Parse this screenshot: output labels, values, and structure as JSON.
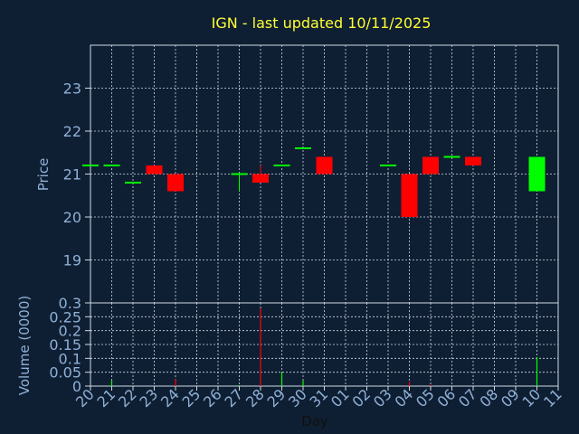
{
  "chart_data": [
    {
      "type": "candlestick",
      "title": "IGN - last updated 10/11/2025",
      "ylabel": "Price",
      "ylim": [
        18.0,
        24.0
      ],
      "yticks": [
        "19",
        "20",
        "21",
        "22",
        "23"
      ],
      "grid": true,
      "categories": [
        "20",
        "21",
        "22",
        "23",
        "24",
        "27",
        "28",
        "29",
        "30",
        "31",
        "03",
        "04",
        "05",
        "06",
        "07",
        "10"
      ],
      "x_tick_labels": [
        "20",
        "21",
        "22",
        "23",
        "24",
        "25",
        "26",
        "27",
        "28",
        "29",
        "30",
        "31",
        "01",
        "02",
        "03",
        "04",
        "05",
        "06",
        "07",
        "08",
        "09",
        "10",
        "11"
      ],
      "candles": [
        {
          "day": "20",
          "open": 21.2,
          "close": 21.2,
          "high": 21.2,
          "low": 21.2
        },
        {
          "day": "21",
          "open": 21.2,
          "close": 21.2,
          "high": 21.2,
          "low": 21.2
        },
        {
          "day": "22",
          "open": 20.8,
          "close": 20.8,
          "high": 20.8,
          "low": 20.8
        },
        {
          "day": "23",
          "open": 21.2,
          "close": 21.0,
          "high": 21.2,
          "low": 21.0
        },
        {
          "day": "24",
          "open": 21.0,
          "close": 20.6,
          "high": 21.0,
          "low": 20.6
        },
        {
          "day": "27",
          "open": 21.0,
          "close": 21.0,
          "high": 21.0,
          "low": 20.6
        },
        {
          "day": "28",
          "open": 21.0,
          "close": 20.8,
          "high": 21.2,
          "low": 20.8
        },
        {
          "day": "29",
          "open": 21.2,
          "close": 21.2,
          "high": 21.2,
          "low": 21.2
        },
        {
          "day": "30",
          "open": 21.6,
          "close": 21.6,
          "high": 21.6,
          "low": 21.6
        },
        {
          "day": "31",
          "open": 21.4,
          "close": 21.0,
          "high": 21.4,
          "low": 21.0
        },
        {
          "day": "03",
          "open": 21.2,
          "close": 21.2,
          "high": 21.2,
          "low": 21.2
        },
        {
          "day": "04",
          "open": 21.0,
          "close": 20.0,
          "high": 21.0,
          "low": 20.0
        },
        {
          "day": "05",
          "open": 21.4,
          "close": 21.0,
          "high": 21.4,
          "low": 21.0
        },
        {
          "day": "06",
          "open": 21.4,
          "close": 21.4,
          "high": 21.4,
          "low": 21.4
        },
        {
          "day": "07",
          "open": 21.4,
          "close": 21.2,
          "high": 21.4,
          "low": 21.2
        },
        {
          "day": "10",
          "open": 20.6,
          "close": 21.4,
          "high": 21.4,
          "low": 20.6
        }
      ]
    },
    {
      "type": "bar",
      "ylabel": "Volume (0000)",
      "xlabel": "Day",
      "ylim": [
        0,
        0.3
      ],
      "yticks": [
        "0",
        "0.05",
        "0.1",
        "0.15",
        "0.2",
        "0.25",
        "0.3"
      ],
      "categories": [
        "20",
        "21",
        "22",
        "23",
        "24",
        "27",
        "28",
        "29",
        "30",
        "31",
        "03",
        "04",
        "05",
        "06",
        "07",
        "10"
      ],
      "values": [
        0,
        0.02,
        0,
        0,
        0.025,
        0.003,
        0.28,
        0.05,
        0.02,
        0,
        0,
        0.015,
        0.005,
        0,
        0,
        0.105
      ],
      "colors": [
        "#00ff00",
        "#00ff00",
        "#00ff00",
        "#ff0000",
        "#ff0000",
        "#00ff00",
        "#ff0000",
        "#00ff00",
        "#00ff00",
        "#ff0000",
        "#00ff00",
        "#ff0000",
        "#ff0000",
        "#00ff00",
        "#ff0000",
        "#00ff00"
      ]
    }
  ],
  "colors": {
    "background": "#0f1f33",
    "plot_area": "#0f1f33",
    "grid": "#cfd8e3",
    "up": "#00ff00",
    "down": "#ff0000",
    "title": "#ffff33",
    "axis_text": "#8fb0d6",
    "xlabel_text": "#101010"
  }
}
